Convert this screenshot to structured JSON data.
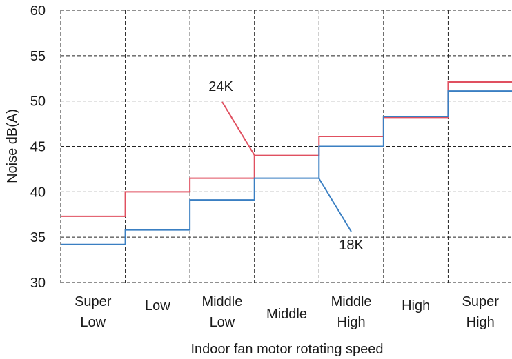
{
  "chart_data": {
    "type": "line",
    "subtype": "step",
    "title": "",
    "xlabel": "Indoor fan motor rotating speed",
    "ylabel": "Noise dB(A)",
    "ylim": [
      30,
      60
    ],
    "yticks": [
      30,
      35,
      40,
      45,
      50,
      55,
      60
    ],
    "grid": true,
    "legend": "none",
    "categories": [
      [
        "Super",
        "Low"
      ],
      [
        "Low"
      ],
      [
        "Middle",
        "Low"
      ],
      [
        "Middle"
      ],
      [
        "Middle",
        "High"
      ],
      [
        "High"
      ],
      [
        "Super",
        "High"
      ]
    ],
    "series": [
      {
        "name": "24K",
        "color": "#e05060",
        "values": [
          37.3,
          40.0,
          41.5,
          44.0,
          46.1,
          48.2,
          52.1
        ]
      },
      {
        "name": "18K",
        "color": "#3a7fc2",
        "values": [
          34.2,
          35.8,
          39.1,
          41.5,
          45.0,
          48.3,
          51.1
        ]
      }
    ],
    "annotations": [
      {
        "text": "24K",
        "series": "24K"
      },
      {
        "text": "18K",
        "series": "18K"
      }
    ]
  }
}
